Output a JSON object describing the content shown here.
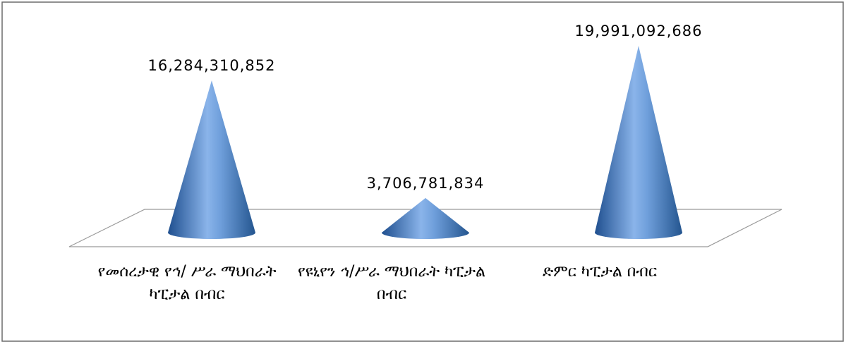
{
  "chart_data": {
    "type": "cone",
    "categories": [
      "የመሰረታዊ የኅ/ ሥራ ማህበራት ካፒታል በብር",
      "የዩኒየን ኅ/ሥራ ማህበራት ካፒታል በብር",
      "ድምር ካፒታል በብር"
    ],
    "values": [
      16284310852,
      3706781834,
      19991092686
    ],
    "value_labels": [
      "16,284,310,852",
      "3,706,781,834",
      "19,991,092,686"
    ],
    "color": "#4a7ebb"
  }
}
